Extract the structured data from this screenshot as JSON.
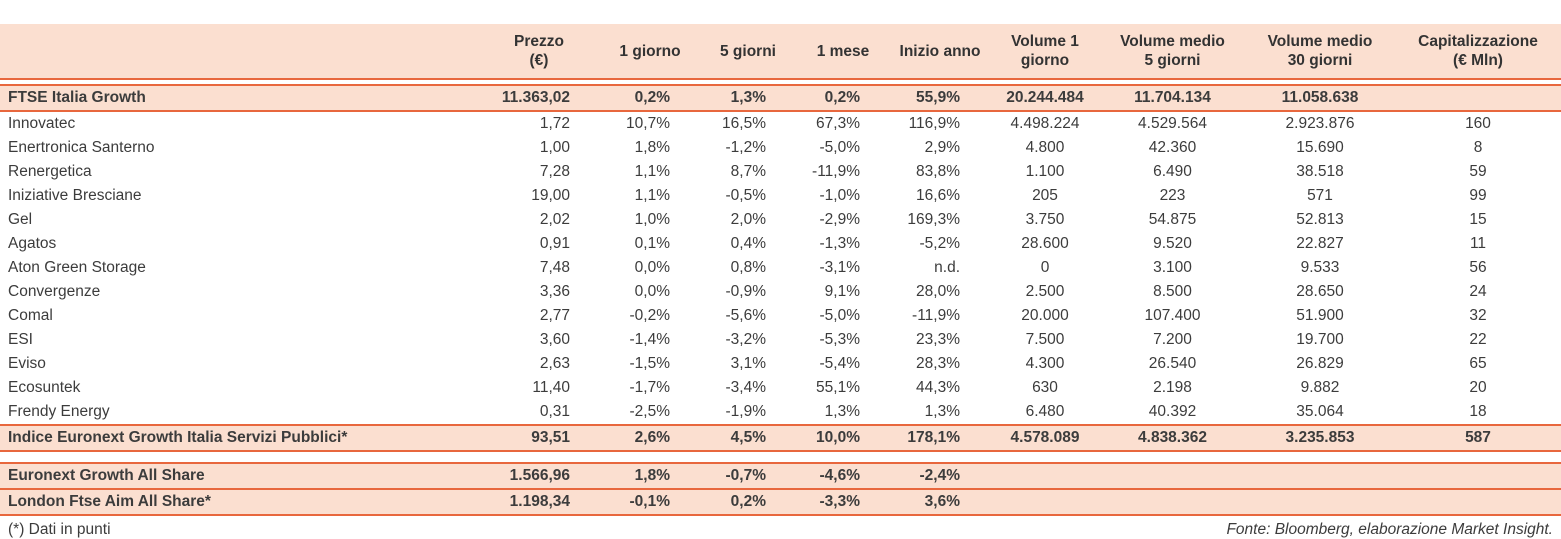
{
  "chart_data": {
    "type": "table",
    "columns": [
      {
        "lines": [],
        "align": "left"
      },
      {
        "lines": [
          "Prezzo",
          "(€)"
        ],
        "align": "right"
      },
      {
        "lines": [
          "1 giorno"
        ],
        "align": "right"
      },
      {
        "lines": [
          "5 giorni"
        ],
        "align": "right"
      },
      {
        "lines": [
          "1 mese"
        ],
        "align": "right"
      },
      {
        "lines": [
          "Inizio anno"
        ],
        "align": "right"
      },
      {
        "lines": [
          "Volume 1",
          "giorno"
        ],
        "align": "center"
      },
      {
        "lines": [
          "Volume medio",
          "5 giorni"
        ],
        "align": "center"
      },
      {
        "lines": [
          "Volume medio",
          "30 giorni"
        ],
        "align": "center"
      },
      {
        "lines": [
          "Capitalizzazione",
          "(€ Mln)"
        ],
        "align": "center"
      }
    ],
    "rows": [
      {
        "name": "FTSE Italia Growth",
        "highlight": true,
        "cells": [
          "11.363,02",
          "0,2%",
          "1,3%",
          "0,2%",
          "55,9%",
          "20.244.484",
          "11.704.134",
          "11.058.638",
          ""
        ]
      },
      {
        "name": "Innovatec",
        "highlight": false,
        "cells": [
          "1,72",
          "10,7%",
          "16,5%",
          "67,3%",
          "116,9%",
          "4.498.224",
          "4.529.564",
          "2.923.876",
          "160"
        ]
      },
      {
        "name": "Enertronica Santerno",
        "highlight": false,
        "cells": [
          "1,00",
          "1,8%",
          "-1,2%",
          "-5,0%",
          "2,9%",
          "4.800",
          "42.360",
          "15.690",
          "8"
        ]
      },
      {
        "name": "Renergetica",
        "highlight": false,
        "cells": [
          "7,28",
          "1,1%",
          "8,7%",
          "-11,9%",
          "83,8%",
          "1.100",
          "6.490",
          "38.518",
          "59"
        ]
      },
      {
        "name": "Iniziative Bresciane",
        "highlight": false,
        "cells": [
          "19,00",
          "1,1%",
          "-0,5%",
          "-1,0%",
          "16,6%",
          "205",
          "223",
          "571",
          "99"
        ]
      },
      {
        "name": "Gel",
        "highlight": false,
        "cells": [
          "2,02",
          "1,0%",
          "2,0%",
          "-2,9%",
          "169,3%",
          "3.750",
          "54.875",
          "52.813",
          "15"
        ]
      },
      {
        "name": "Agatos",
        "highlight": false,
        "cells": [
          "0,91",
          "0,1%",
          "0,4%",
          "-1,3%",
          "-5,2%",
          "28.600",
          "9.520",
          "22.827",
          "11"
        ]
      },
      {
        "name": "Aton Green Storage",
        "highlight": false,
        "cells": [
          "7,48",
          "0,0%",
          "0,8%",
          "-3,1%",
          "n.d.",
          "0",
          "3.100",
          "9.533",
          "56"
        ]
      },
      {
        "name": "Convergenze",
        "highlight": false,
        "cells": [
          "3,36",
          "0,0%",
          "-0,9%",
          "9,1%",
          "28,0%",
          "2.500",
          "8.500",
          "28.650",
          "24"
        ]
      },
      {
        "name": "Comal",
        "highlight": false,
        "cells": [
          "2,77",
          "-0,2%",
          "-5,6%",
          "-5,0%",
          "-11,9%",
          "20.000",
          "107.400",
          "51.900",
          "32"
        ]
      },
      {
        "name": "ESI",
        "highlight": false,
        "cells": [
          "3,60",
          "-1,4%",
          "-3,2%",
          "-5,3%",
          "23,3%",
          "7.500",
          "7.200",
          "19.700",
          "22"
        ]
      },
      {
        "name": "Eviso",
        "highlight": false,
        "cells": [
          "2,63",
          "-1,5%",
          "3,1%",
          "-5,4%",
          "28,3%",
          "4.300",
          "26.540",
          "26.829",
          "65"
        ]
      },
      {
        "name": "Ecosuntek",
        "highlight": false,
        "cells": [
          "11,40",
          "-1,7%",
          "-3,4%",
          "55,1%",
          "44,3%",
          "630",
          "2.198",
          "9.882",
          "20"
        ]
      },
      {
        "name": "Frendy Energy",
        "highlight": false,
        "cells": [
          "0,31",
          "-2,5%",
          "-1,9%",
          "1,3%",
          "1,3%",
          "6.480",
          "40.392",
          "35.064",
          "18"
        ]
      },
      {
        "name": "Indice Euronext Growth Italia Servizi Pubblici*",
        "highlight": true,
        "cells": [
          "93,51",
          "2,6%",
          "4,5%",
          "10,0%",
          "178,1%",
          "4.578.089",
          "4.838.362",
          "3.235.853",
          "587"
        ]
      }
    ],
    "summary_rows": [
      {
        "name": "Euronext Growth All Share",
        "highlight": true,
        "cells": [
          "1.566,96",
          "1,8%",
          "-0,7%",
          "-4,6%",
          "-2,4%",
          "",
          "",
          "",
          ""
        ]
      },
      {
        "name": "London Ftse Aim All Share*",
        "highlight": true,
        "cells": [
          "1.198,34",
          "-0,1%",
          "0,2%",
          "-3,3%",
          "3,6%",
          "",
          "",
          "",
          ""
        ]
      }
    ]
  },
  "footer": {
    "left": "(*) Dati in punti",
    "right": "Fonte: Bloomberg, elaborazione Market Insight."
  },
  "colors": {
    "accent": "#e8673d",
    "highlight_bg": "#fbdfd0",
    "text": "#3c3c3c"
  }
}
